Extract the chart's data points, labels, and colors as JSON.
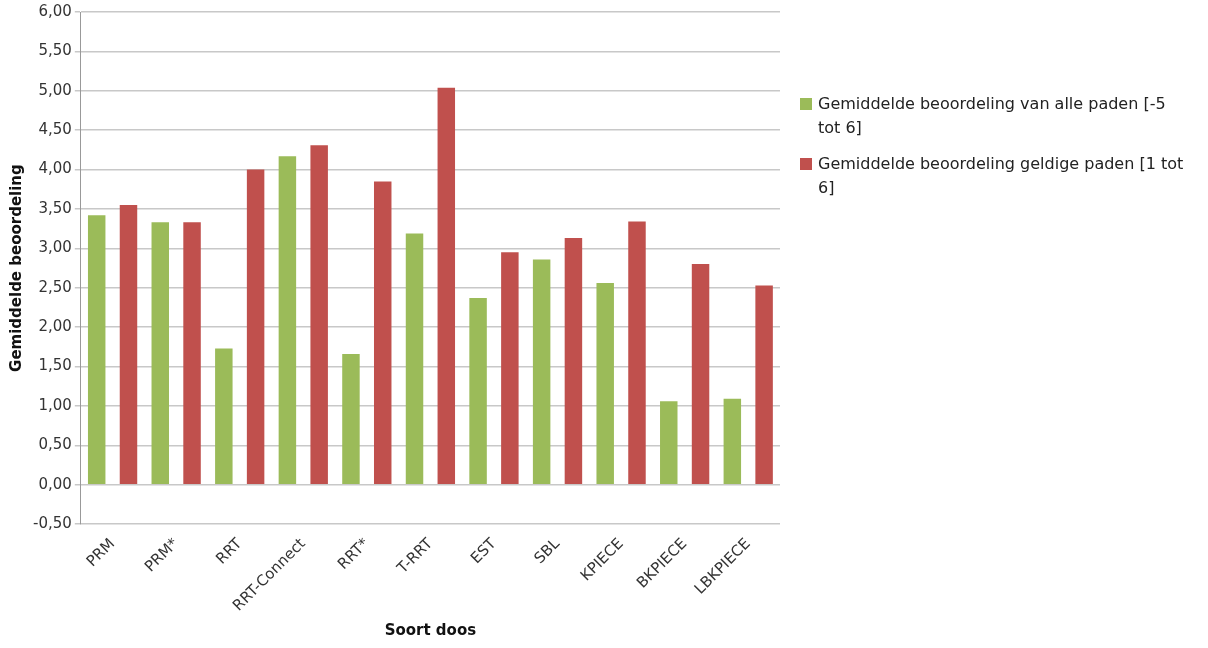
{
  "chart_data": {
    "type": "bar",
    "xlabel": "Soort doos",
    "ylabel": "Gemiddelde beoordeling",
    "categories": [
      "PRM",
      "PRM*",
      "RRT",
      "RRT-Connect",
      "RRT*",
      "T-RRT",
      "EST",
      "SBL",
      "KPIECE",
      "BKPIECE",
      "LBKPIECE"
    ],
    "series": [
      {
        "name": "Gemiddelde beoordeling van alle paden [-5 tot 6]",
        "color": "#9bbb59",
        "values": [
          3.42,
          3.33,
          1.73,
          4.17,
          1.66,
          3.19,
          2.37,
          2.86,
          2.56,
          1.06,
          1.09
        ]
      },
      {
        "name": "Gemiddelde beoordeling geldige paden [1 tot 6]",
        "color": "#c0504d",
        "values": [
          3.55,
          3.33,
          4.0,
          4.31,
          3.85,
          5.04,
          2.95,
          3.13,
          3.34,
          2.8,
          2.53
        ]
      }
    ],
    "ylim": [
      -0.5,
      6
    ],
    "yticks": [
      {
        "value": -0.5,
        "label": "-0,50"
      },
      {
        "value": 0,
        "label": "0,00"
      },
      {
        "value": 0.5,
        "label": "0,50"
      },
      {
        "value": 1,
        "label": "1,00"
      },
      {
        "value": 1.5,
        "label": "1,50"
      },
      {
        "value": 2,
        "label": "2,00"
      },
      {
        "value": 2.5,
        "label": "2,50"
      },
      {
        "value": 3,
        "label": "3,00"
      },
      {
        "value": 3.5,
        "label": "3,50"
      },
      {
        "value": 4,
        "label": "4,00"
      },
      {
        "value": 4.5,
        "label": "4,50"
      },
      {
        "value": 5,
        "label": "5,00"
      },
      {
        "value": 5.5,
        "label": "5,50"
      },
      {
        "value": 6,
        "label": "6,00"
      }
    ],
    "grid": "y",
    "legend": "right"
  }
}
